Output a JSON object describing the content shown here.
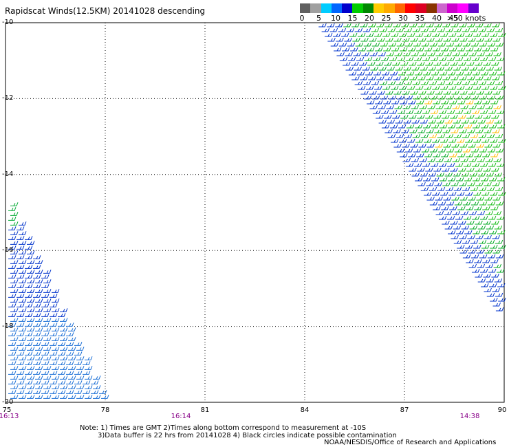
{
  "title": "Rapidscat Winds(12.5KM) 20141028 descending",
  "legend": {
    "labels": [
      "0",
      "5",
      "10",
      "15",
      "20",
      "25",
      "30",
      "35",
      "40",
      "45",
      ">50 knots"
    ],
    "colors": [
      "#606060",
      "#a0a0a0",
      "#00ccff",
      "#0066ff",
      "#0000cc",
      "#00cc00",
      "#008800",
      "#ffcc00",
      "#ffaa00",
      "#ff6600",
      "#ff0000",
      "#dd0022",
      "#883300",
      "#cc66cc",
      "#cc00cc",
      "#ff00ff",
      "#6600cc"
    ]
  },
  "map": {
    "lon_range": [
      75,
      90
    ],
    "lat_range": [
      -10,
      -20
    ],
    "lon_ticks": [
      "75",
      "78",
      "81",
      "84",
      "87",
      "90"
    ],
    "lat_ticks": [
      "-10",
      "-12",
      "-14",
      "-16",
      "-18",
      "-20"
    ],
    "grid": true
  },
  "times": [
    "16:13",
    "16:14",
    "14:38"
  ],
  "swaths": [
    {
      "name": "west",
      "lon_min": 75,
      "lon_max": 77.9,
      "lat_max": -14.3,
      "lat_min": -20,
      "dominant_color": "#0000cc"
    },
    {
      "name": "east",
      "lon_min": 84.3,
      "lon_max": 90,
      "lat_max": -10,
      "lat_min": -18,
      "dominant_color": "#00cc00"
    }
  ],
  "notes": {
    "line1": "Note: 1) Times are GMT 2)Times along bottom correspond to measurement at -10S",
    "line2": "3)Data buffer is 22 hrs from 20141028 4) Black circles indicate possible contamination",
    "credit": "NOAA/NESDIS/Office of Research and Applications"
  }
}
